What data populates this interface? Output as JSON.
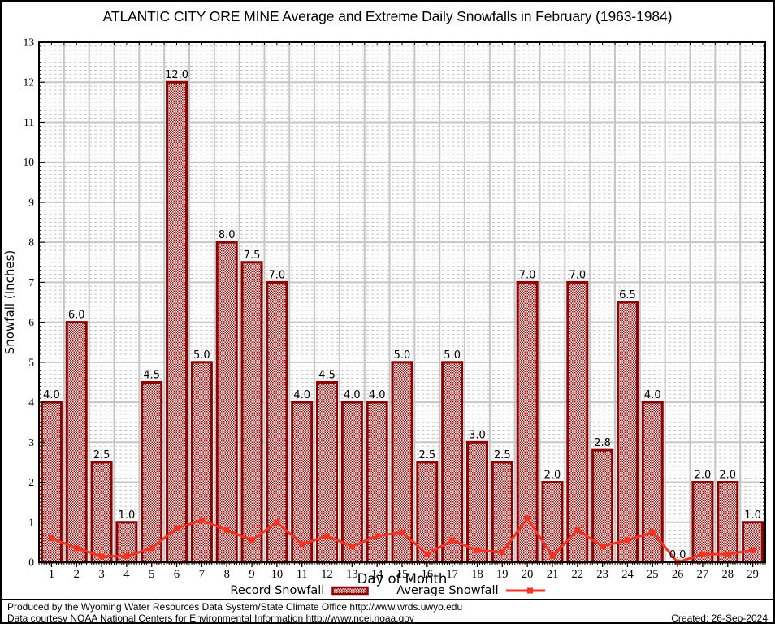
{
  "chart_data": {
    "type": "bar",
    "title": "ATLANTIC CITY ORE MINE Average and Extreme Daily Snowfalls in February (1963-1984)",
    "xlabel": "Day of Month",
    "ylabel": "Snowfall (Inches)",
    "ylim": [
      0,
      13
    ],
    "ytick_step": 1,
    "grid": "on",
    "legend_position": "bottom",
    "categories": [
      "1",
      "2",
      "3",
      "4",
      "5",
      "6",
      "7",
      "8",
      "9",
      "10",
      "11",
      "12",
      "13",
      "14",
      "15",
      "16",
      "17",
      "18",
      "19",
      "20",
      "21",
      "22",
      "23",
      "24",
      "25",
      "26",
      "27",
      "28",
      "29"
    ],
    "series": [
      {
        "name": "Record Snowfall",
        "type": "bar",
        "values": [
          4.0,
          6.0,
          2.5,
          1.0,
          4.5,
          12.0,
          5.0,
          8.0,
          7.5,
          7.0,
          4.0,
          4.5,
          4.0,
          4.0,
          5.0,
          2.5,
          5.0,
          3.0,
          2.5,
          7.0,
          2.0,
          7.0,
          2.8,
          6.5,
          4.0,
          0.0,
          2.0,
          2.0,
          1.0
        ]
      },
      {
        "name": "Average Snowfall",
        "type": "line",
        "values": [
          0.6,
          0.35,
          0.15,
          0.15,
          0.35,
          0.85,
          1.05,
          0.8,
          0.55,
          1.0,
          0.45,
          0.65,
          0.4,
          0.65,
          0.75,
          0.2,
          0.55,
          0.3,
          0.25,
          1.1,
          0.15,
          0.8,
          0.4,
          0.55,
          0.75,
          0.0,
          0.2,
          0.2,
          0.3
        ]
      }
    ],
    "colors": {
      "bar_fill": "#9e1010",
      "bar_border": "#8b0000",
      "line": "#f83222",
      "grid_major": "#c6c6c6",
      "grid_minor": "#c2c2c2",
      "frame": "#000000"
    }
  },
  "footer": {
    "line1": "Produced by the Wyoming Water Resources Data System/State Climate Office http://www.wrds.uwyo.edu",
    "line2": "Data courtesy NOAA National Centers for Environmental Information http://www.ncei.noaa.gov",
    "created": "Created: 26-Sep-2024"
  }
}
